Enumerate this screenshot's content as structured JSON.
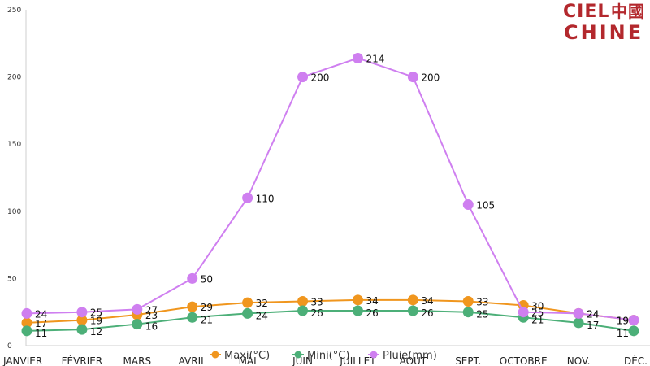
{
  "logo": {
    "line1": "CIEL",
    "glyph": "中國",
    "line2": "CHINE"
  },
  "chart_data": {
    "type": "line",
    "categories": [
      "JANVIER",
      "FÉVRIER",
      "MARS",
      "AVRIL",
      "MAI",
      "JUIN",
      "JUILLET",
      "AOUT",
      "SEPT.",
      "OCTOBRE",
      "NOV.",
      "DÉC."
    ],
    "ylim": [
      0,
      250
    ],
    "yticks": [
      0,
      50,
      100,
      150,
      200,
      250
    ],
    "grid": false,
    "legend_position": "bottom",
    "series": [
      {
        "name": "Maxi(°C)",
        "color": "#f0961e",
        "values": [
          17,
          19,
          23,
          29,
          32,
          33,
          34,
          34,
          33,
          30,
          24,
          19
        ]
      },
      {
        "name": "Mini(°C)",
        "color": "#4caf78",
        "values": [
          11,
          12,
          16,
          21,
          24,
          26,
          26,
          26,
          25,
          21,
          17,
          11
        ]
      },
      {
        "name": "Pluie(mm)",
        "color": "#cf7ff0",
        "values": [
          24,
          25,
          27,
          50,
          110,
          200,
          214,
          200,
          105,
          25,
          24,
          19
        ]
      }
    ]
  }
}
